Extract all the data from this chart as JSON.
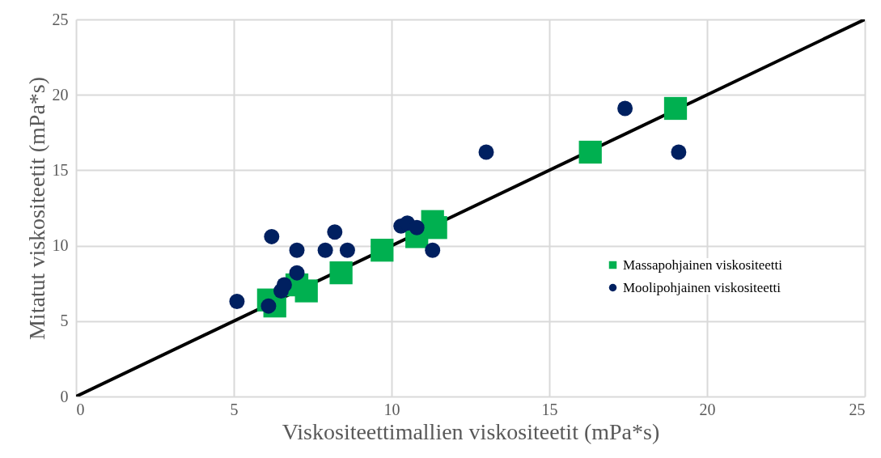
{
  "chart_data": {
    "type": "scatter",
    "xlabel": "Viskositeettimallien viskositeetit (mPa*s)",
    "ylabel": "Mitatut viskositeetit (mPa*s)",
    "xlim": [
      0,
      25
    ],
    "ylim": [
      0,
      25
    ],
    "xticks": [
      0,
      5,
      10,
      15,
      20,
      25
    ],
    "yticks": [
      0,
      5,
      10,
      15,
      20,
      25
    ],
    "grid": true,
    "legend": "right",
    "series": [
      {
        "type": "line",
        "color": "#000000",
        "x": [
          0,
          25
        ],
        "values": [
          0,
          25
        ],
        "line_style": "solid"
      },
      {
        "name": "Massapohjainen viskositeetti",
        "color": "#00b050",
        "marker": "square",
        "x": [
          6.1,
          6.3,
          7.0,
          7.3,
          8.4,
          9.7,
          10.8,
          11.3,
          11.4,
          16.3,
          19.0
        ],
        "values": [
          6.4,
          6.0,
          7.4,
          7.0,
          8.2,
          9.7,
          10.6,
          11.6,
          11.2,
          16.2,
          19.1
        ]
      },
      {
        "name": "Moolipohjainen viskositeetti",
        "color": "#002060",
        "marker": "circle",
        "x": [
          5.1,
          6.1,
          6.5,
          6.6,
          7.0,
          6.2,
          7.0,
          7.9,
          8.2,
          8.6,
          10.3,
          10.5,
          10.8,
          11.3,
          13.0,
          17.4,
          19.1
        ],
        "values": [
          6.3,
          6.0,
          7.0,
          7.4,
          8.2,
          10.6,
          9.7,
          9.7,
          10.9,
          9.7,
          11.3,
          11.5,
          11.2,
          9.7,
          16.2,
          19.1,
          16.2
        ]
      }
    ]
  }
}
